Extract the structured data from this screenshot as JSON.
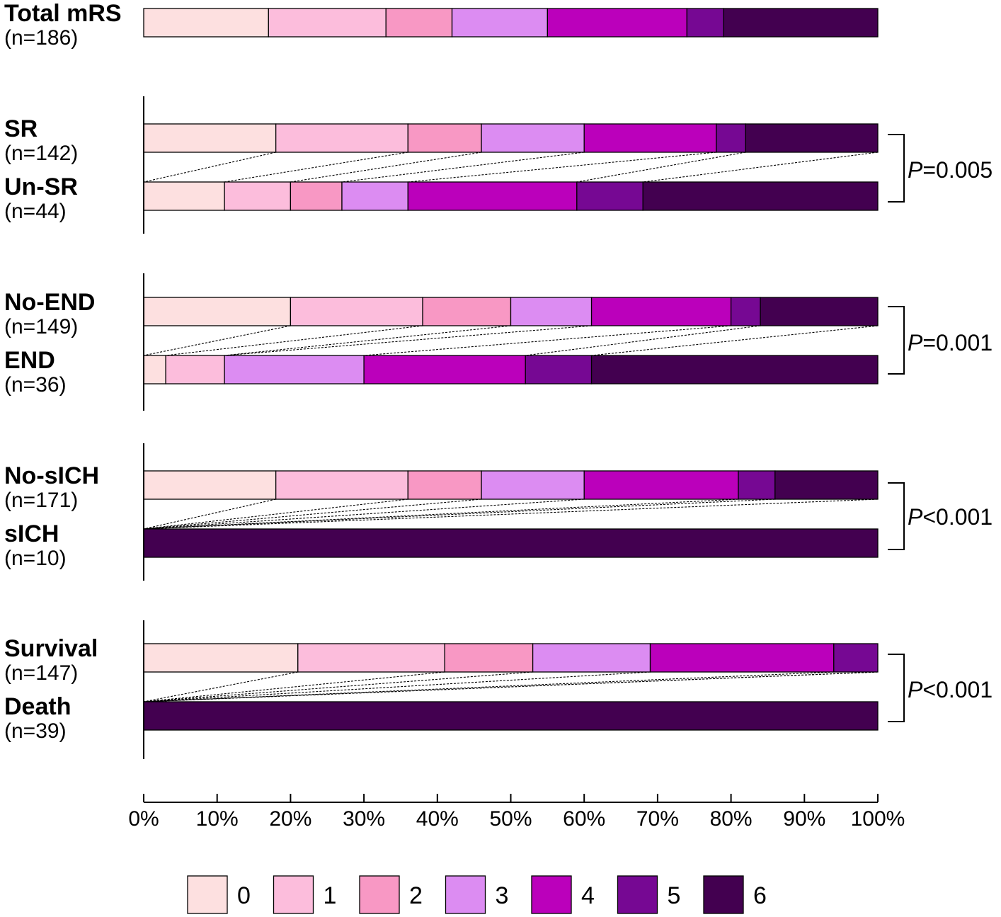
{
  "chart_data": {
    "type": "bar",
    "orientation": "horizontal-stacked-100",
    "legend_title": "",
    "categories_mrs": [
      "0",
      "1",
      "2",
      "3",
      "4",
      "5",
      "6"
    ],
    "colors": [
      "#fde0e0",
      "#fcbddc",
      "#f898c4",
      "#dc8cf2",
      "#bb00bb",
      "#760893",
      "#430050"
    ],
    "xaxis": {
      "ticks": [
        "0%",
        "10%",
        "20%",
        "30%",
        "40%",
        "50%",
        "60%",
        "70%",
        "80%",
        "90%",
        "100%"
      ],
      "range": [
        0,
        100
      ]
    },
    "bars": [
      {
        "id": "total",
        "label": "Total mRS",
        "n": "(n=186)",
        "values": [
          17,
          16,
          9,
          13,
          19,
          5,
          21
        ]
      },
      {
        "id": "sr",
        "label": "SR",
        "n": "(n=142)",
        "values": [
          18,
          18,
          10,
          14,
          18,
          4,
          18
        ]
      },
      {
        "id": "unsr",
        "label": "Un-SR",
        "n": "(n=44)",
        "values": [
          11,
          9,
          7,
          9,
          23,
          9,
          32
        ]
      },
      {
        "id": "noend",
        "label": "No-END",
        "n": "(n=149)",
        "values": [
          20,
          18,
          12,
          11,
          19,
          4,
          16
        ]
      },
      {
        "id": "end",
        "label": "END",
        "n": "(n=36)",
        "values": [
          3,
          8,
          0,
          19,
          22,
          9,
          39
        ]
      },
      {
        "id": "nosich",
        "label": "No-sICH",
        "n": "(n=171)",
        "values": [
          18,
          18,
          10,
          14,
          21,
          5,
          14
        ]
      },
      {
        "id": "sich",
        "label": "sICH",
        "n": "(n=10)",
        "values": [
          0,
          0,
          0,
          0,
          0,
          0,
          100
        ]
      },
      {
        "id": "survival",
        "label": "Survival",
        "n": "(n=147)",
        "values": [
          21,
          20,
          12,
          16,
          25,
          6,
          0
        ]
      },
      {
        "id": "death",
        "label": "Death",
        "n": "(n=39)",
        "values": [
          0,
          0,
          0,
          0,
          0,
          0,
          100
        ]
      }
    ],
    "comparisons": [
      {
        "pair": [
          "sr",
          "unsr"
        ],
        "p_italic": "P",
        "p_rest": "=0.005"
      },
      {
        "pair": [
          "noend",
          "end"
        ],
        "p_italic": "P",
        "p_rest": "=0.001"
      },
      {
        "pair": [
          "nosich",
          "sich"
        ],
        "p_italic": "P",
        "p_rest": "<0.001"
      },
      {
        "pair": [
          "survival",
          "death"
        ],
        "p_italic": "P",
        "p_rest": "<0.001"
      }
    ]
  }
}
